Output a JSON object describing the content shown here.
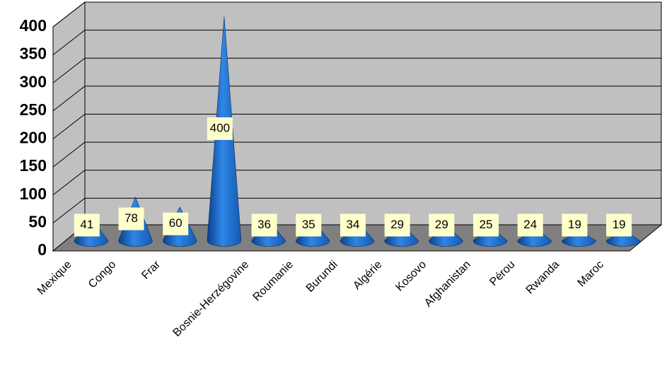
{
  "chart_data": {
    "type": "cone3d",
    "categories": [
      "Mexique",
      "Congo",
      "Frar",
      null,
      "Bosnie-Herzégovine",
      "Roumanie",
      "Burundi",
      "Algérie",
      "Kosovo",
      "Afghanistan",
      "Pérou",
      "Rwanda",
      "Maroc"
    ],
    "values": [
      41,
      78,
      60,
      400,
      36,
      35,
      34,
      29,
      29,
      25,
      24,
      19,
      19
    ],
    "color": "#1f6fd0",
    "ylim": [
      0,
      400
    ],
    "yticks": [
      0,
      50,
      100,
      150,
      200,
      250,
      300,
      350,
      400
    ],
    "grid": true
  }
}
